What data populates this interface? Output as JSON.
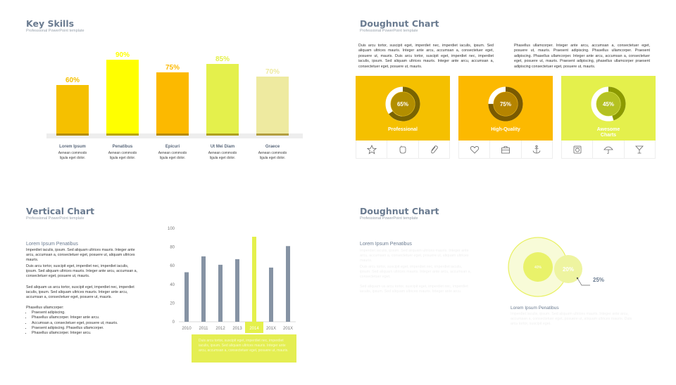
{
  "slide1": {
    "title": "Key Skills",
    "subtitle": "Professional PowerPoint template",
    "bars": [
      {
        "pct": "60%",
        "value": 60,
        "name": "Lorem Ipsum",
        "desc": "Aenean commodo ligula eget dolor.",
        "color": "#f5c000",
        "label_color": "#f5c000"
      },
      {
        "pct": "90%",
        "value": 90,
        "name": "Penatibus",
        "desc": "Aenean commodo ligula eget dolor.",
        "color": "#ffff00",
        "label_color": "#ffff00"
      },
      {
        "pct": "75%",
        "value": 75,
        "name": "Epicuri",
        "desc": "Aenean commodo ligula eget dolor.",
        "color": "#fcb900",
        "label_color": "#fcb900"
      },
      {
        "pct": "85%",
        "value": 85,
        "name": "Ut Mei Diam",
        "desc": "Aenean commodo ligula eget dolor.",
        "color": "#e4f04c",
        "label_color": "#e4f04c"
      },
      {
        "pct": "70%",
        "value": 70,
        "name": "Graece",
        "desc": "Aenean commodo ligula eget dolor.",
        "color": "#eeeaa0",
        "label_color": "#eeeaa0"
      }
    ]
  },
  "slide2": {
    "title": "Doughnut Chart",
    "subtitle": "Professional PowerPoint template",
    "para_left": "Duis arcu tortor, suscipit eget, imperdiet nec, imperdiet iaculis, ipsum. Sed aliquam ultrices mauris. Integer ante arcu, accumsan a, consectetuer eget, posuere ut, mauris. Duis arcu tortor, suscipit eget, imperdiet nec, imperdiet iaculis, ipsum. Sed aliquam ultrices mauris. Integer ante arcu, accumsan a, consectetuer eget, posuere ut, mauris.",
    "para_right": "Phasellus ullamcorper. Integer ante arcu, accumsan a, consectetuer eget, posuere ut, mauris. Praesent adipiscing. Phasellus ullamcorper. Praesent adipiscing. Phasellus ullamcorper. Integer ante arcu, accumsan a, consectetuer eget, posuere ut, mauris. Praesent adipiscing, phasellus ullamcorper praesent adipiscing consectetuer eget, posuere ut, mauris.",
    "panels": [
      {
        "pct_label": "65%",
        "value": 65,
        "label": "Professional",
        "bg": "#f5c000",
        "dark": "#7a6400",
        "icons": [
          "star-icon",
          "hand-icon",
          "paperclip-icon"
        ]
      },
      {
        "pct_label": "75%",
        "value": 75,
        "label": "High-Quality",
        "bg": "#fcb900",
        "dark": "#7a5a00",
        "icons": [
          "heart-icon",
          "briefcase-icon",
          "anchor-icon"
        ]
      },
      {
        "pct_label": "45%",
        "value": 45,
        "label": "Awesome Charts",
        "bg": "#e4f04c",
        "dark": "#8c9a00",
        "icons": [
          "camera-icon",
          "umbrella-icon",
          "cocktail-icon"
        ]
      }
    ]
  },
  "slide3": {
    "title": "Vertical Chart",
    "subtitle": "Professional PowerPoint template",
    "heading": "Lorem Ipsum Penatibus",
    "p1": "Imperdiet iaculis, ipsum. Sed aliquam ultrices mauris. Integer ante arcu, accumsan a, consectetuer eget, posuere ut, aliquam ultrices mauris.",
    "p2": "Duis arcu tortor, suscipit eget, imperdiet nec, imperdiet iaculis, ipsum. Sed aliquam ultrices mauris. Integer ante arcu, accumsan a, consectetuer eget, posuere ut, mauris.",
    "p3": "Sed aliquam us arcu tortor, suscipit eget, imperdiet nec, imperdiet iaculis, ipsum. Sed aliquam ultrices mauris. Integer ante arcu, accumsan a, consectetuer eget, posuere ut, mauris.",
    "list_heading": "Phasellus ullamcorper:",
    "bullets": [
      "Praesent adipiscing.",
      "Phasellus ullamcorper. Integer ante arcu.",
      "Accumsan a, consectetuer eget, posuere ut, mauris.",
      "Praesent adipiscing. Phasellus ullamcorper.",
      "Phasellus ullamcorper. Integer arcu."
    ],
    "note": "Duis arcu tortor, suscipit eget, imperdiet nec, imperdiet iaculis, ipsum. Sed aliquam ultrices mauris. Integer ante arcu, accumsan a, consectetuer eget, posuere ut, mauris."
  },
  "slide4": {
    "title": "Doughnut Chart",
    "subtitle": "Professional PowerPoint template",
    "heading_left": "Lorem Ipsum Penatibus",
    "ghost_p1": "Imperdiet iaculis, ipsum. Sed aliquam ultrices mauris. Integer ante arcu, accumsan a, consectetuer eget, posuere ut, aliquam ultrices mauris.",
    "ghost_p2": "Duis arcu tortor, suscipit eget, imperdiet nec, imperdiet iaculis, ipsum. Sed aliquam ultrices mauris. Integer ante arcu, accumsan a, consectetuer eget.",
    "ghost_p3": "Sed aliquam us arcu tortor, suscipit eget, imperdiet nec, imperdiet iaculis, ipsum. Sed aliquam ultrices mauris. Integer ante arcu.",
    "big_label": "40%",
    "small_label": "20%",
    "callout": "25%",
    "callout_sup": "%",
    "heading_right": "Lorem Ipsum Penatibus",
    "ghost_right": "Imperdiet iaculis, ipsum. Sed aliquam ultrices mauris. Integer ante arcu, accumsan a, consectetuer eget, posuere ut, aliquam ultrices mauris. Duis arcu tortor, suscipit eget."
  },
  "chart_data": [
    {
      "type": "bar",
      "categories": [
        "Lorem Ipsum",
        "Penatibus",
        "Epicuri",
        "Ut Mei Diam",
        "Graece"
      ],
      "values": [
        60,
        90,
        75,
        85,
        70
      ]
    },
    {
      "type": "bar",
      "categories": [
        "2010",
        "2011",
        "2012",
        "2013",
        "2014",
        "201X",
        "201X"
      ],
      "values": [
        53,
        70,
        61,
        67,
        91,
        58,
        81
      ],
      "ylim": [
        0,
        100
      ],
      "yticks": [
        "0",
        "20",
        "40",
        "60",
        "80",
        "100"
      ],
      "highlight_index": 4,
      "colors": {
        "normal": "#8693a4",
        "highlight": "#e4f04c"
      }
    },
    {
      "type": "pie",
      "labels": [
        "65%",
        "75%",
        "45%"
      ],
      "values": [
        65,
        75,
        45
      ]
    }
  ]
}
